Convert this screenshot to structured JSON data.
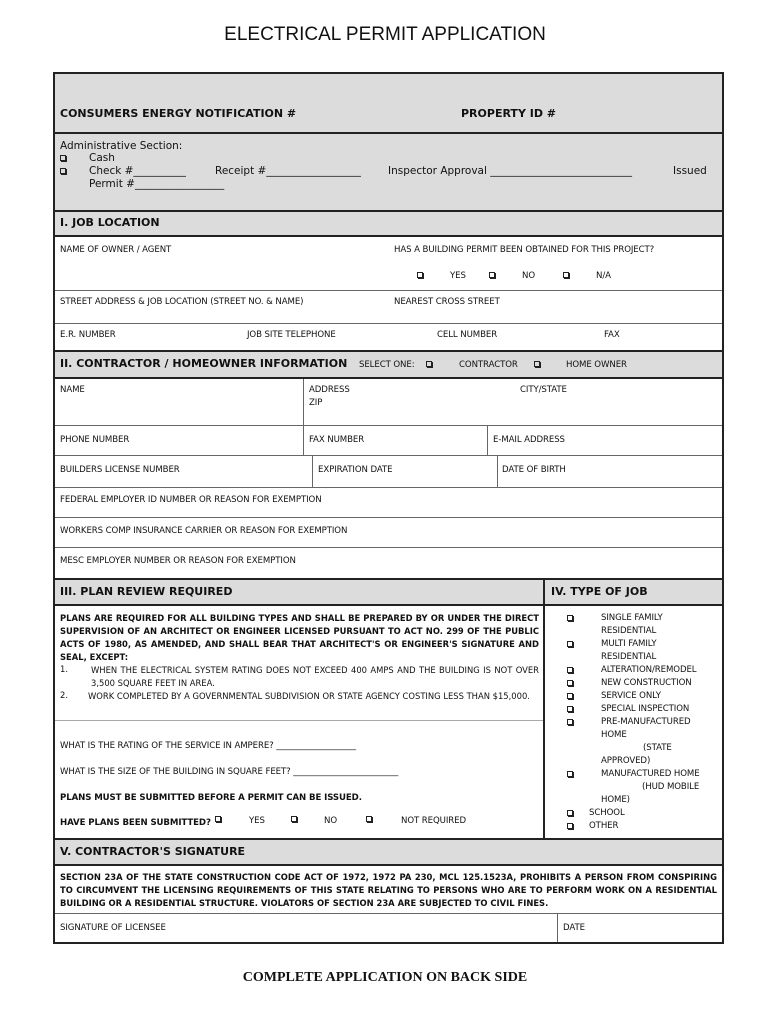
{
  "title": "ELECTRICAL PERMIT APPLICATION",
  "top": {
    "consumers": "CONSUMERS ENERGY NOTIFICATION #",
    "property": "PROPERTY  ID #"
  },
  "admin": {
    "label": "Administrative Section:",
    "cash": "Cash",
    "check": "Check  #__________",
    "receipt": "Receipt #__________________",
    "inspector": "Inspector Approval ___________________________",
    "issued": "Issued",
    "permit": "Permit #_________________"
  },
  "job": {
    "header": "I. JOB LOCATION",
    "owner": "NAME OF OWNER / AGENT",
    "permit_q": "HAS A BUILDING PERMIT BEEN OBTAINED FOR THIS PROJECT?",
    "yes": "YES",
    "no": "NO",
    "na": "N/A",
    "street": "STREET ADDRESS & JOB LOCATION (STREET NO. & NAME)",
    "cross": "NEAREST CROSS STREET",
    "er": "E.R. NUMBER",
    "site_phone": "JOB SITE TELEPHONE",
    "cell": "CELL NUMBER",
    "fax": "FAX"
  },
  "contractor": {
    "header": "II.  CONTRACTOR / HOMEOWNER INFORMATION",
    "select": "SELECT ONE:",
    "opt1": "CONTRACTOR",
    "opt2": "HOME OWNER",
    "name": "NAME",
    "address": "ADDRESS",
    "zip": "ZIP",
    "city": "CITY/STATE",
    "phone": "PHONE NUMBER",
    "fax": "FAX NUMBER",
    "email": "E-MAIL ADDRESS",
    "license": "BUILDERS LICENSE NUMBER",
    "expiration": "EXPIRATION DATE",
    "dob": "DATE OF BIRTH",
    "federal": "FEDERAL EMPLOYER ID NUMBER OR REASON FOR EXEMPTION",
    "workers": "WORKERS COMP INSURANCE CARRIER OR REASON FOR EXEMPTION",
    "mesc": "MESC EMPLOYER NUMBER OR REASON FOR EXEMPTION"
  },
  "plan": {
    "header": "III.  PLAN REVIEW REQUIRED",
    "intro": "PLANS ARE REQUIRED FOR ALL BUILDING TYPES AND SHALL BE PREPARED BY OR UNDER THE DIRECT SUPERVISION OF AN ARCHITECT OR ENGINEER LICENSED PURSUANT TO ACT NO. 299 OF THE PUBLIC ACTS OF 1980, AS AMENDED, AND SHALL BEAR THAT ARCHITECT'S OR ENGINEER'S SIGNATURE AND SEAL, EXCEPT:",
    "n1": "1.",
    "e1": "WHEN THE ELECTRICAL SYSTEM RATING DOES NOT EXCEED 400 AMPS AND THE BUILDING IS NOT OVER 3,500 SQUARE FEET IN AREA.",
    "n2": "2.",
    "e2": "WORK COMPLETED BY A GOVERNMENTAL SUBDIVISION OR STATE AGENCY COSTING LESS THAN $15,000.",
    "rating": "WHAT IS THE RATING OF THE SERVICE IN AMPERE? ___________________",
    "size": "WHAT IS THE SIZE OF THE BUILDING IN SQUARE FEET? _________________________",
    "must": "PLANS MUST BE SUBMITTED BEFORE A PERMIT CAN BE ISSUED.",
    "submitted": "HAVE PLANS BEEN SUBMITTED?",
    "yes": "YES",
    "no": "NO",
    "notreq": "NOT REQUIRED"
  },
  "type": {
    "header": "IV.  TYPE OF JOB",
    "items": [
      "SINGLE FAMILY",
      "RESIDENTIAL",
      "MULTI FAMILY",
      "RESIDENTIAL",
      "ALTERATION/REMODEL",
      "NEW CONSTRUCTION",
      "SERVICE ONLY",
      "SPECIAL INSPECTION",
      "PRE-MANUFACTURED",
      "HOME",
      "(STATE",
      "APPROVED)",
      "MANUFACTURED HOME",
      "(HUD MOBILE",
      "HOME)",
      "SCHOOL",
      "OTHER"
    ]
  },
  "signature": {
    "header": "V.  CONTRACTOR'S SIGNATURE",
    "text": "SECTION 23A OF THE STATE CONSTRUCTION CODE ACT OF 1972, 1972 PA 230, MCL 125.1523A, PROHIBITS A PERSON FROM CONSPIRING TO CIRCUMVENT THE LICENSING REQUIREMENTS OF THIS STATE RELATING TO PERSONS WHO ARE TO PERFORM WORK ON A RESIDENTIAL BUILDING OR A RESIDENTIAL STRUCTURE.  VIOLATORS OF SECTION 23A ARE SUBJECTED TO CIVIL FINES.",
    "licensee": "SIGNATURE OF LICENSEE",
    "date": "DATE"
  },
  "footer": "COMPLETE APPLICATION ON BACK SIDE"
}
